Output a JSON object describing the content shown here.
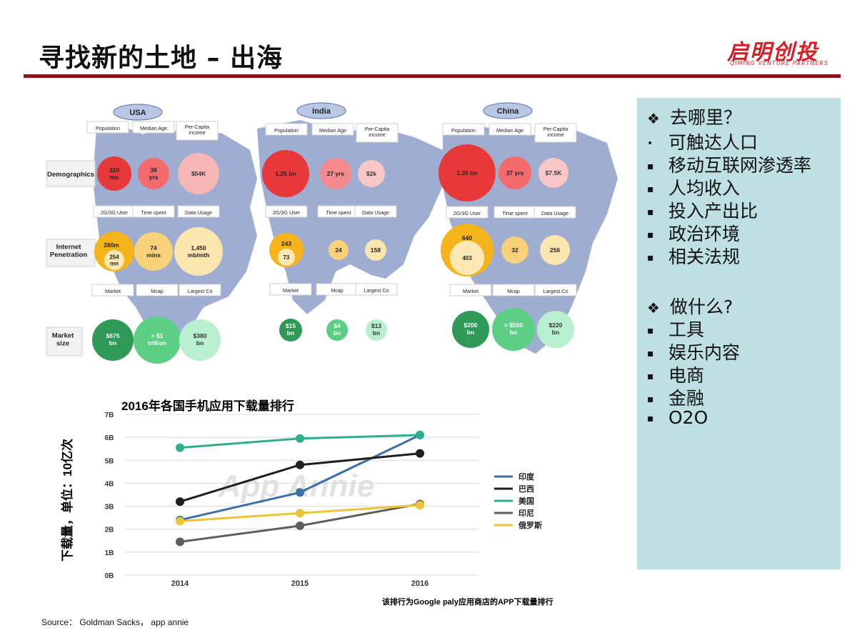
{
  "slide": {
    "title": "寻找新的土地 – 出海",
    "logo_main": "启明创投",
    "logo_sub": "QIMING VENTURE PARTNERS",
    "source": "Source： Goldman Sacks， app annie"
  },
  "panel": {
    "items": [
      {
        "marker": "❖",
        "text": "去哪里？",
        "type": "heading"
      },
      {
        "marker": "•",
        "text": "可触达人口",
        "type": "bullet"
      },
      {
        "marker": "▪",
        "text": "移动互联网渗透率",
        "type": "bullet"
      },
      {
        "marker": "▪",
        "text": "人均收入",
        "type": "bullet"
      },
      {
        "marker": "▪",
        "text": "投入产出比",
        "type": "bullet"
      },
      {
        "marker": "▪",
        "text": "政治环境",
        "type": "bullet"
      },
      {
        "marker": "▪",
        "text": "相关法规",
        "type": "bullet"
      },
      {
        "marker": "❖",
        "text": "做什么?",
        "type": "heading"
      },
      {
        "marker": "▪",
        "text": "工具",
        "type": "bullet"
      },
      {
        "marker": "▪",
        "text": "娱乐内容",
        "type": "bullet"
      },
      {
        "marker": "▪",
        "text": "电商",
        "type": "bullet"
      },
      {
        "marker": "▪",
        "text": "金融",
        "type": "bullet"
      },
      {
        "marker": "▪",
        "text": "O2O",
        "type": "bullet"
      }
    ]
  },
  "infographic": {
    "row_labels": {
      "demographics": "Demographics",
      "internet": [
        "Internet",
        "Penetration"
      ],
      "market": [
        "Market",
        "size"
      ]
    },
    "countries": [
      {
        "name": "USA",
        "headers_demo": [
          "Population",
          "Median Age",
          [
            "Per-Capita",
            "income"
          ]
        ],
        "demo": [
          "320 mn",
          "38 yrs",
          "$54K"
        ],
        "headers_net": [
          "2G/3G User",
          "Time spent",
          "Data Usage"
        ],
        "net_total": "280m",
        "net_sub": "254 mn",
        "net": [
          "74 mins",
          "1,450 mb/mth"
        ],
        "headers_market": [
          "Market",
          "Mcap",
          "Largest Co"
        ],
        "market": [
          "$675 bn",
          "> $1 trillion",
          "$380 bn"
        ]
      },
      {
        "name": "India",
        "headers_demo": [
          "Population",
          "Median Age",
          [
            "Per-Capita",
            "income"
          ]
        ],
        "demo": [
          "1.25 bn",
          "27 yrs",
          "$2k"
        ],
        "headers_net": [
          "2G/3G User",
          "Time spent",
          "Data Usage"
        ],
        "net_total": "243",
        "net_sub": "73",
        "net": [
          "24",
          "158"
        ],
        "headers_market": [
          "Market",
          "Mcap",
          "Largest Co"
        ],
        "market": [
          "$15 bn",
          "$4 bn",
          "$13 bn"
        ]
      },
      {
        "name": "China",
        "headers_demo": [
          "Population",
          "Median Age",
          [
            "Per-Capita",
            "income"
          ]
        ],
        "demo": [
          "1.35 bn",
          "37 yrs",
          "$7.5K"
        ],
        "headers_net": [
          "2G/3G User",
          "Time spent",
          "Data Usage"
        ],
        "net_total": "640",
        "net_sub": "403",
        "net": [
          "32",
          "256"
        ],
        "headers_market": [
          "Market",
          "Mcap",
          "Largest Co"
        ],
        "market": [
          "$200 bn",
          "> $550 bn",
          "$220 bn"
        ]
      }
    ]
  },
  "chart_data": {
    "type": "line",
    "title": "2016年各国手机应用下载量排行",
    "ylabel": "下载量，单位：10亿次",
    "x": [
      "2014",
      "2015",
      "2016"
    ],
    "yticks": [
      "0B",
      "1B",
      "2B",
      "3B",
      "4B",
      "5B",
      "6B",
      "7B"
    ],
    "ylim": [
      0,
      7
    ],
    "grid": true,
    "legend_position": "right",
    "watermark": "App Annie",
    "footnote": "该排行为Google paly应用商店的APP下载量排行",
    "series": [
      {
        "name": "印度",
        "color": "#3b6fa8",
        "values": [
          2.4,
          3.6,
          6.1
        ]
      },
      {
        "name": "巴西",
        "color": "#1e1e1e",
        "values": [
          3.2,
          4.8,
          5.3
        ]
      },
      {
        "name": "美国",
        "color": "#2fae8e",
        "values": [
          5.55,
          5.95,
          6.1
        ]
      },
      {
        "name": "印尼",
        "color": "#5e5e5e",
        "values": [
          1.45,
          2.15,
          3.1
        ]
      },
      {
        "name": "俄罗斯",
        "color": "#ecc436",
        "values": [
          2.35,
          2.7,
          3.05
        ]
      }
    ]
  }
}
